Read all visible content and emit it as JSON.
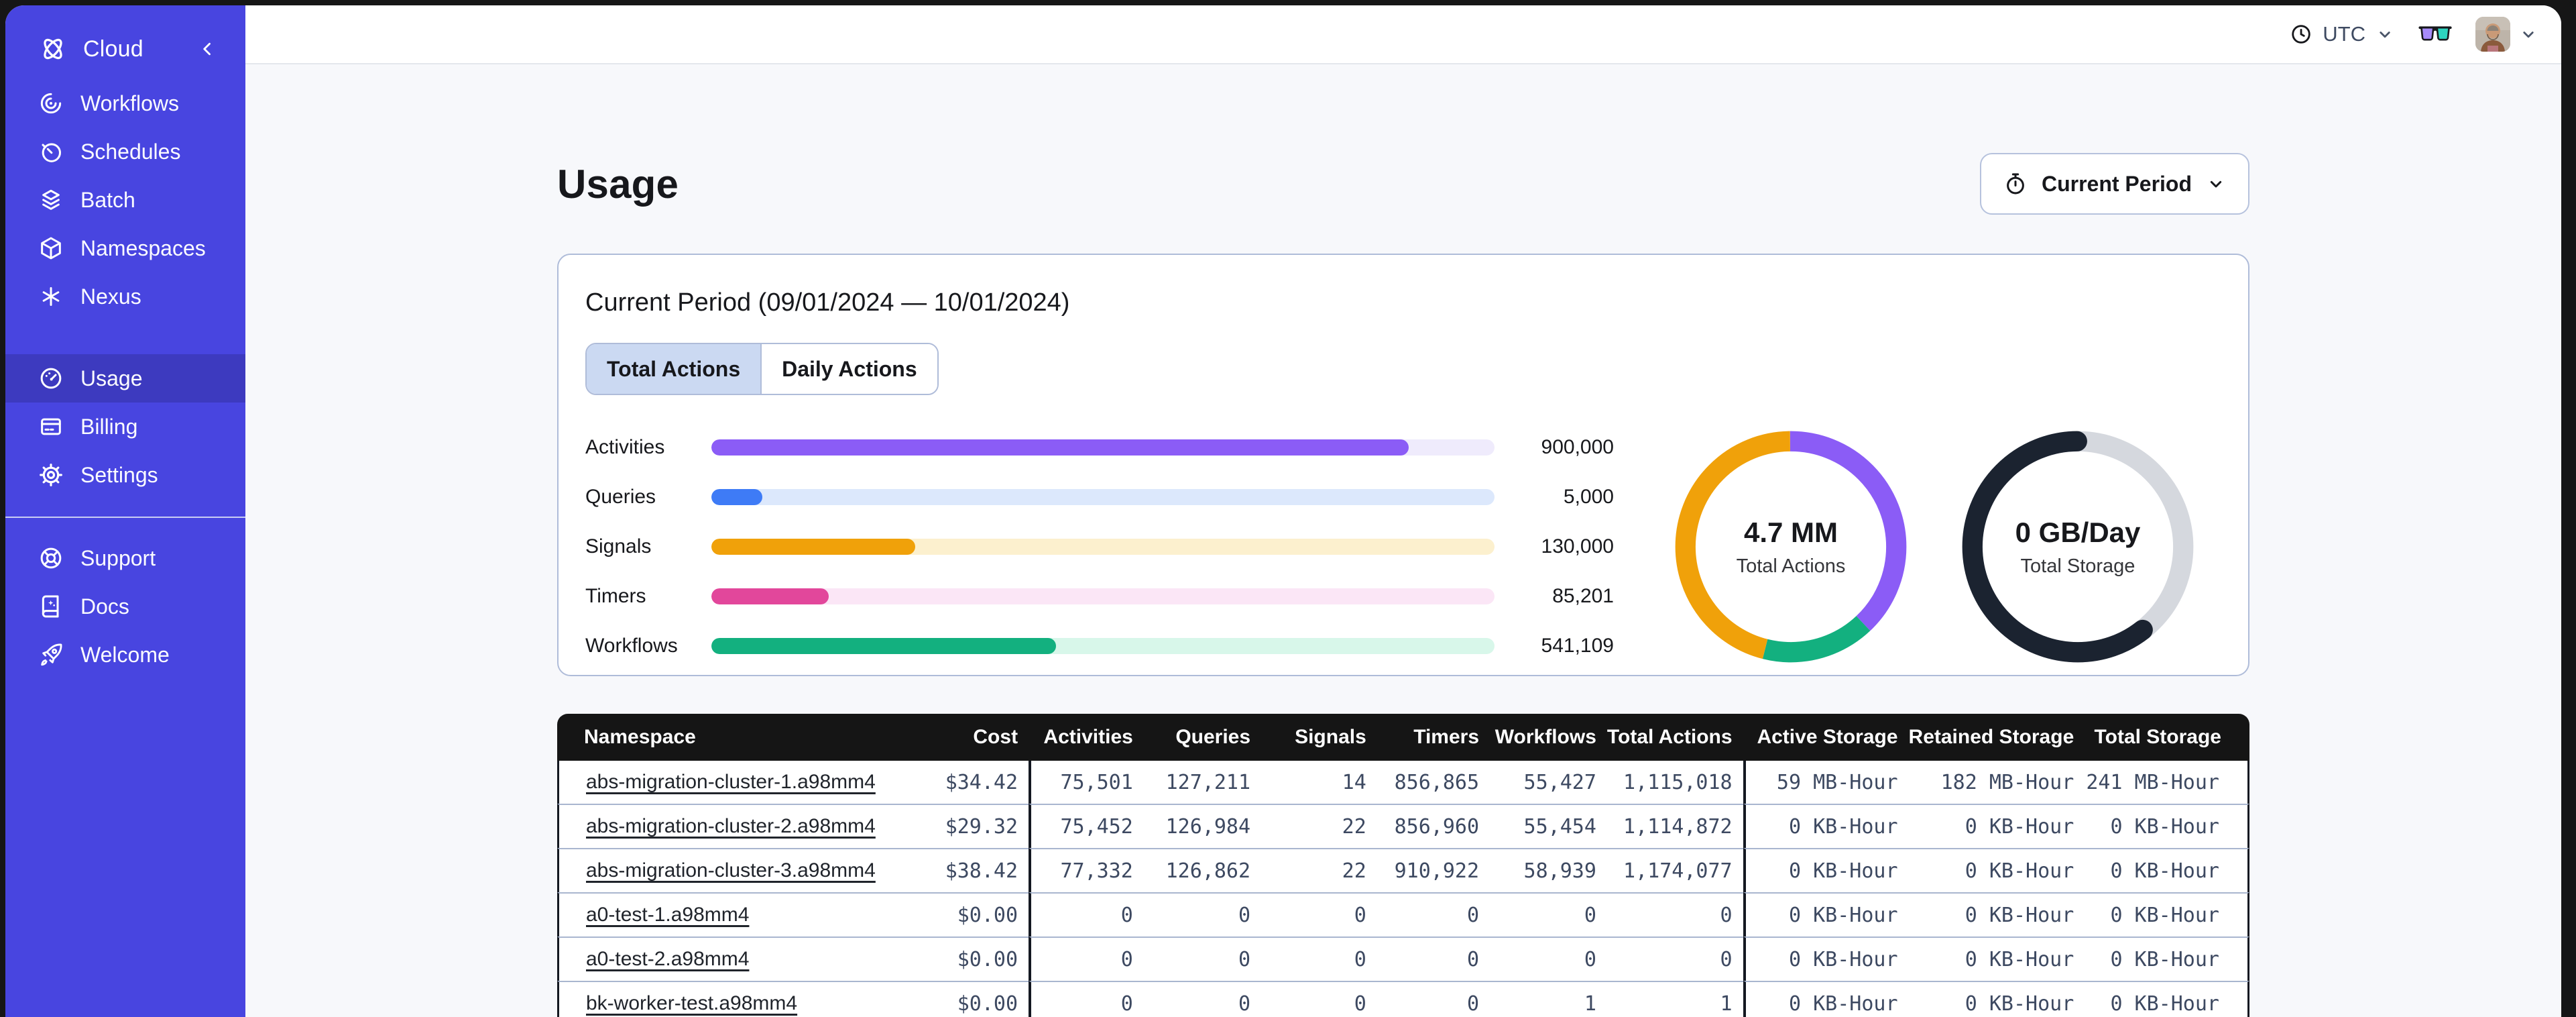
{
  "topbar": {
    "timezone_label": "UTC"
  },
  "sidebar": {
    "brand_label": "Cloud",
    "primary": [
      {
        "label": "Workflows"
      },
      {
        "label": "Schedules"
      },
      {
        "label": "Batch"
      },
      {
        "label": "Namespaces"
      },
      {
        "label": "Nexus"
      }
    ],
    "account": [
      {
        "label": "Usage",
        "selected": true
      },
      {
        "label": "Billing",
        "selected": false
      },
      {
        "label": "Settings",
        "selected": false
      }
    ],
    "footer": [
      {
        "label": "Support"
      },
      {
        "label": "Docs"
      },
      {
        "label": "Welcome"
      }
    ]
  },
  "page": {
    "title": "Usage",
    "period_button_label": "Current Period"
  },
  "usage_card": {
    "title": "Current Period (09/01/2024 — 10/01/2024)",
    "tabs": [
      {
        "label": "Total Actions",
        "active": true
      },
      {
        "label": "Daily Actions",
        "active": false
      }
    ],
    "chart_data": [
      {
        "type": "bar",
        "orientation": "horizontal",
        "categories": [
          "Activities",
          "Queries",
          "Signals",
          "Timers",
          "Workflows"
        ],
        "values": [
          900000,
          5000,
          130000,
          85201,
          541109
        ],
        "value_labels": [
          "900,000",
          "5,000",
          "130,000",
          "85,201",
          "541,109"
        ],
        "fill_pct": [
          89,
          6.5,
          26,
          15,
          44
        ],
        "colors": [
          "#8B5CF6",
          "#3E7BF6",
          "#F0A10A",
          "#E2479B",
          "#13B07F"
        ],
        "track_colors": [
          "#EFEBFC",
          "#DCE8FC",
          "#FCF0CE",
          "#FBE6F6",
          "#D8F7EA"
        ]
      },
      {
        "type": "donut",
        "center_value": "4.7 MM",
        "center_label": "Total Actions",
        "segments": [
          {
            "name": "purple",
            "color": "#8B5CF6",
            "start_pct": 0,
            "pct": 38
          },
          {
            "name": "green",
            "color": "#13B07F",
            "start_pct": 38,
            "pct": 16
          },
          {
            "name": "orange",
            "color": "#F0A10A",
            "start_pct": 54,
            "pct": 46
          }
        ]
      },
      {
        "type": "donut",
        "center_value": "0 GB/Day",
        "center_label": "Total Storage",
        "segments": [
          {
            "name": "track",
            "color": "#D5D8DE",
            "full": true
          },
          {
            "name": "used",
            "color": "#1B2330",
            "start_pct": 39.5,
            "pct": 60.5,
            "linecap": "round"
          }
        ]
      }
    ]
  },
  "table": {
    "columns": [
      "Namespace",
      "Cost",
      "Activities",
      "Queries",
      "Signals",
      "Timers",
      "Workflows",
      "Total Actions",
      "Active Storage",
      "Retained Storage",
      "Total Storage"
    ],
    "rows": [
      [
        "abs-migration-cluster-1.a98mm4",
        "$34.42",
        "75,501",
        "127,211",
        "14",
        "856,865",
        "55,427",
        "1,115,018",
        "59 MB-Hour",
        "182 MB-Hour",
        "241 MB-Hour"
      ],
      [
        "abs-migration-cluster-2.a98mm4",
        "$29.32",
        "75,452",
        "126,984",
        "22",
        "856,960",
        "55,454",
        "1,114,872",
        "0 KB-Hour",
        "0 KB-Hour",
        "0 KB-Hour"
      ],
      [
        "abs-migration-cluster-3.a98mm4",
        "$38.42",
        "77,332",
        "126,862",
        "22",
        "910,922",
        "58,939",
        "1,174,077",
        "0 KB-Hour",
        "0 KB-Hour",
        "0 KB-Hour"
      ],
      [
        "a0-test-1.a98mm4",
        "$0.00",
        "0",
        "0",
        "0",
        "0",
        "0",
        "0",
        "0 KB-Hour",
        "0 KB-Hour",
        "0 KB-Hour"
      ],
      [
        "a0-test-2.a98mm4",
        "$0.00",
        "0",
        "0",
        "0",
        "0",
        "0",
        "0",
        "0 KB-Hour",
        "0 KB-Hour",
        "0 KB-Hour"
      ],
      [
        "bk-worker-test.a98mm4",
        "$0.00",
        "0",
        "0",
        "0",
        "0",
        "1",
        "1",
        "0 KB-Hour",
        "0 KB-Hour",
        "0 KB-Hour"
      ]
    ]
  },
  "colors": {
    "sidebar_bg": "#4845E0",
    "sidebar_selected_bg": "#3D3ABF",
    "table_header_bg": "#151515",
    "card_border": "#AFBCD9",
    "tab_active_bg": "#CBD9F2",
    "glasses_left_lens": "#A78BFA",
    "glasses_right_lens": "#2DD4BF"
  }
}
